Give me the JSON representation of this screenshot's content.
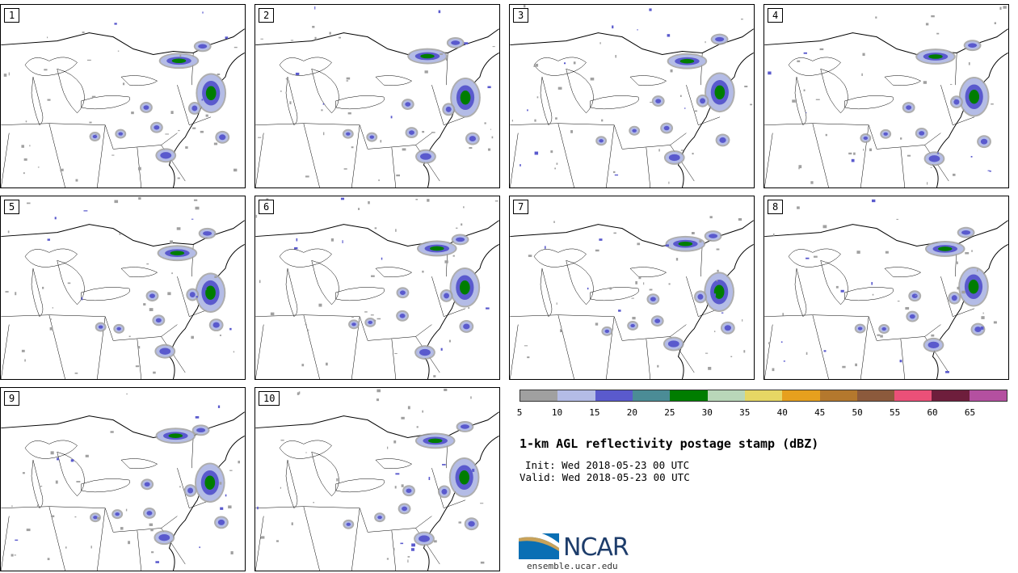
{
  "panels": [
    {
      "label": "1"
    },
    {
      "label": "2"
    },
    {
      "label": "3"
    },
    {
      "label": "4"
    },
    {
      "label": "5"
    },
    {
      "label": "6"
    },
    {
      "label": "7"
    },
    {
      "label": "8"
    },
    {
      "label": "9"
    },
    {
      "label": "10"
    }
  ],
  "colorbar": {
    "colors": [
      "#a0a0a0",
      "#b4bce6",
      "#5a5acd",
      "#4b8c96",
      "#007d00",
      "#b9d7b9",
      "#e6d764",
      "#e6a01e",
      "#b4782d",
      "#8c5a3c",
      "#eb5078",
      "#6e1e3c",
      "#b450a0"
    ],
    "ticks": [
      "5",
      "10",
      "15",
      "20",
      "25",
      "30",
      "35",
      "40",
      "45",
      "50",
      "55",
      "60",
      "65"
    ]
  },
  "title": "1-km AGL reflectivity postage stamp (dBZ)",
  "init_text": "Init: Wed 2018-05-23 00 UTC",
  "valid_text": "Valid: Wed 2018-05-23 00 UTC",
  "logo": {
    "name": "NCAR",
    "url": "ensemble.ucar.edu"
  }
}
